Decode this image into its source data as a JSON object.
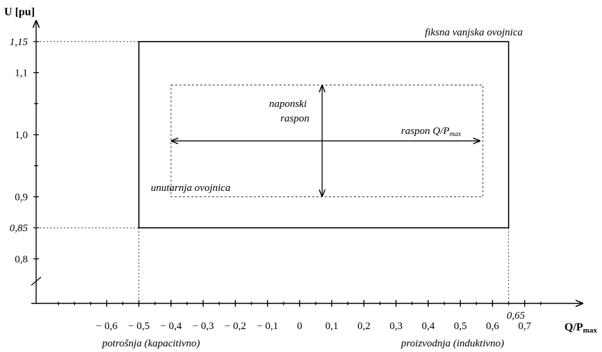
{
  "axes": {
    "y_label_main": "U",
    "y_label_unit": "[pu]",
    "x_label_main": "Q/P",
    "x_label_sub": "max"
  },
  "y_ticks": [
    {
      "label": "1,15",
      "value": 1.15,
      "italic": true
    },
    {
      "label": "1,1",
      "value": 1.1,
      "italic": false
    },
    {
      "label": "1,0",
      "value": 1.0,
      "italic": false
    },
    {
      "label": "0,9",
      "value": 0.9,
      "italic": false
    },
    {
      "label": "0,85",
      "value": 0.85,
      "italic": true
    },
    {
      "label": "0,8",
      "value": 0.8,
      "italic": false
    }
  ],
  "x_ticks": [
    {
      "label": "− 0,6",
      "value": -0.6
    },
    {
      "label": "− 0,5",
      "value": -0.5
    },
    {
      "label": "− 0,4",
      "value": -0.4
    },
    {
      "label": "− 0,3",
      "value": -0.3
    },
    {
      "label": "− 0,2",
      "value": -0.2
    },
    {
      "label": "− 0,1",
      "value": -0.1
    },
    {
      "label": "0",
      "value": 0
    },
    {
      "label": "0,1",
      "value": 0.1
    },
    {
      "label": "0,2",
      "value": 0.2
    },
    {
      "label": "0,3",
      "value": 0.3
    },
    {
      "label": "0,4",
      "value": 0.4
    },
    {
      "label": "0,5",
      "value": 0.5
    },
    {
      "label": "0,6",
      "value": 0.6
    },
    {
      "label": "0,7",
      "value": 0.7
    }
  ],
  "x_marker": {
    "label": "0,65",
    "value": 0.65
  },
  "outer_envelope": {
    "label": "fiksna vanjska ovojnica",
    "q_min": -0.5,
    "q_max": 0.65,
    "u_min": 0.85,
    "u_max": 1.15
  },
  "inner_envelope": {
    "label": "unutarnja ovojnica",
    "q_min": -0.4,
    "q_max": 0.57,
    "u_min": 0.9,
    "u_max": 1.08
  },
  "voltage_range": {
    "line1": "naponski",
    "line2": "raspon",
    "q": 0.07,
    "u_min": 0.9,
    "u_max": 1.08
  },
  "q_range": {
    "label_main": "raspon Q/P",
    "label_sub": "max",
    "u": 0.99,
    "q_min": -0.4,
    "q_max": 0.56
  },
  "region_labels": {
    "left": "potrošnja (kapacitivno)",
    "right": "proizvodnja (induktivno)"
  }
}
